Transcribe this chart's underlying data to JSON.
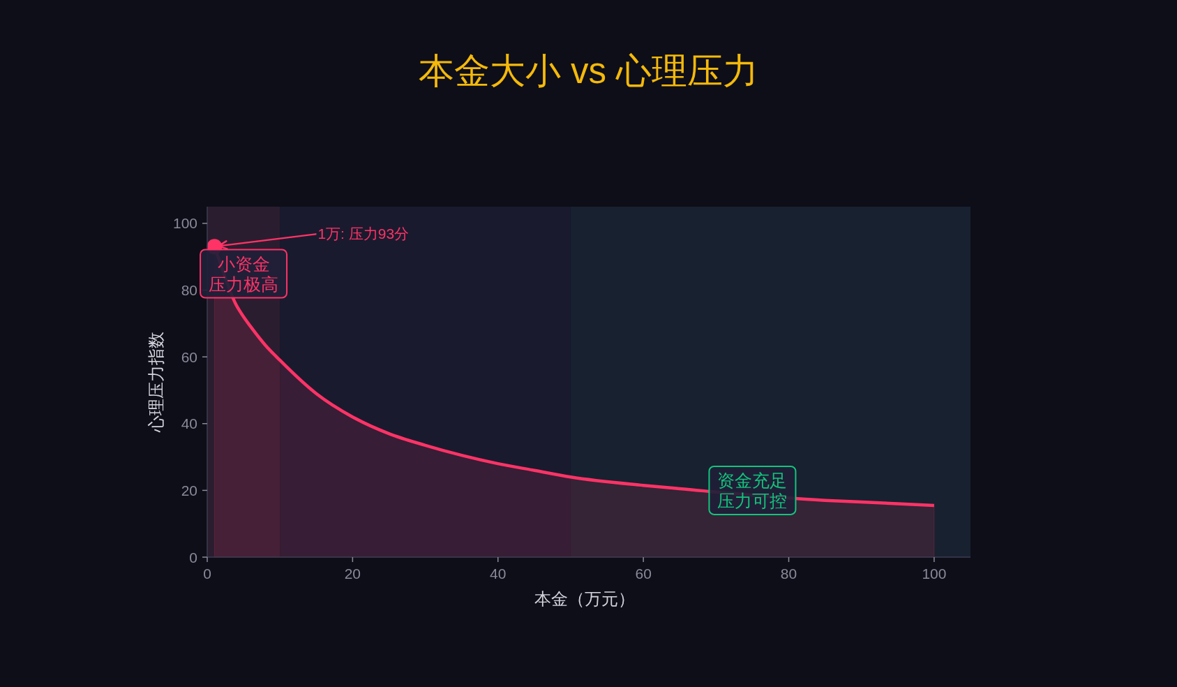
{
  "chart_data": {
    "type": "area",
    "title": "本金大小 vs 心理压力",
    "xlabel": "本金（万元）",
    "ylabel": "心理压力指数",
    "xlim": [
      0,
      105
    ],
    "ylim": [
      0,
      105
    ],
    "xticks": [
      0,
      20,
      40,
      60,
      80,
      100
    ],
    "yticks": [
      0,
      20,
      40,
      60,
      80,
      100
    ],
    "series": [
      {
        "color": "#ff3366",
        "x": [
          1,
          4,
          5,
          6,
          8,
          10,
          15,
          20,
          25,
          30,
          35,
          40,
          45,
          50,
          60,
          65,
          85,
          90,
          100
        ],
        "values": [
          93,
          75.5,
          72,
          69,
          63.5,
          59,
          49,
          42,
          37,
          33.5,
          30.5,
          28,
          26,
          24,
          21.5,
          20.5,
          17,
          16.5,
          15.5
        ]
      },
      {
        "type": "scatter",
        "color": "#ff3366",
        "marker": "circle",
        "x": [
          1
        ],
        "values": [
          93
        ]
      }
    ],
    "bands": [
      {
        "axis": "x",
        "from": 0,
        "to": 10,
        "color": "#2b1d30",
        "label": "小资金压力极高"
      },
      {
        "axis": "x",
        "from": 10,
        "to": 50,
        "color": "#1a1a2e"
      },
      {
        "axis": "x",
        "from": 50,
        "to": 105,
        "color": "#182130"
      }
    ],
    "annotations": [
      {
        "text": "1万: 压力93分",
        "x": 1,
        "y": 93
      },
      {
        "text": "资金充足压力可控",
        "x": 75,
        "y": 20
      }
    ]
  }
}
